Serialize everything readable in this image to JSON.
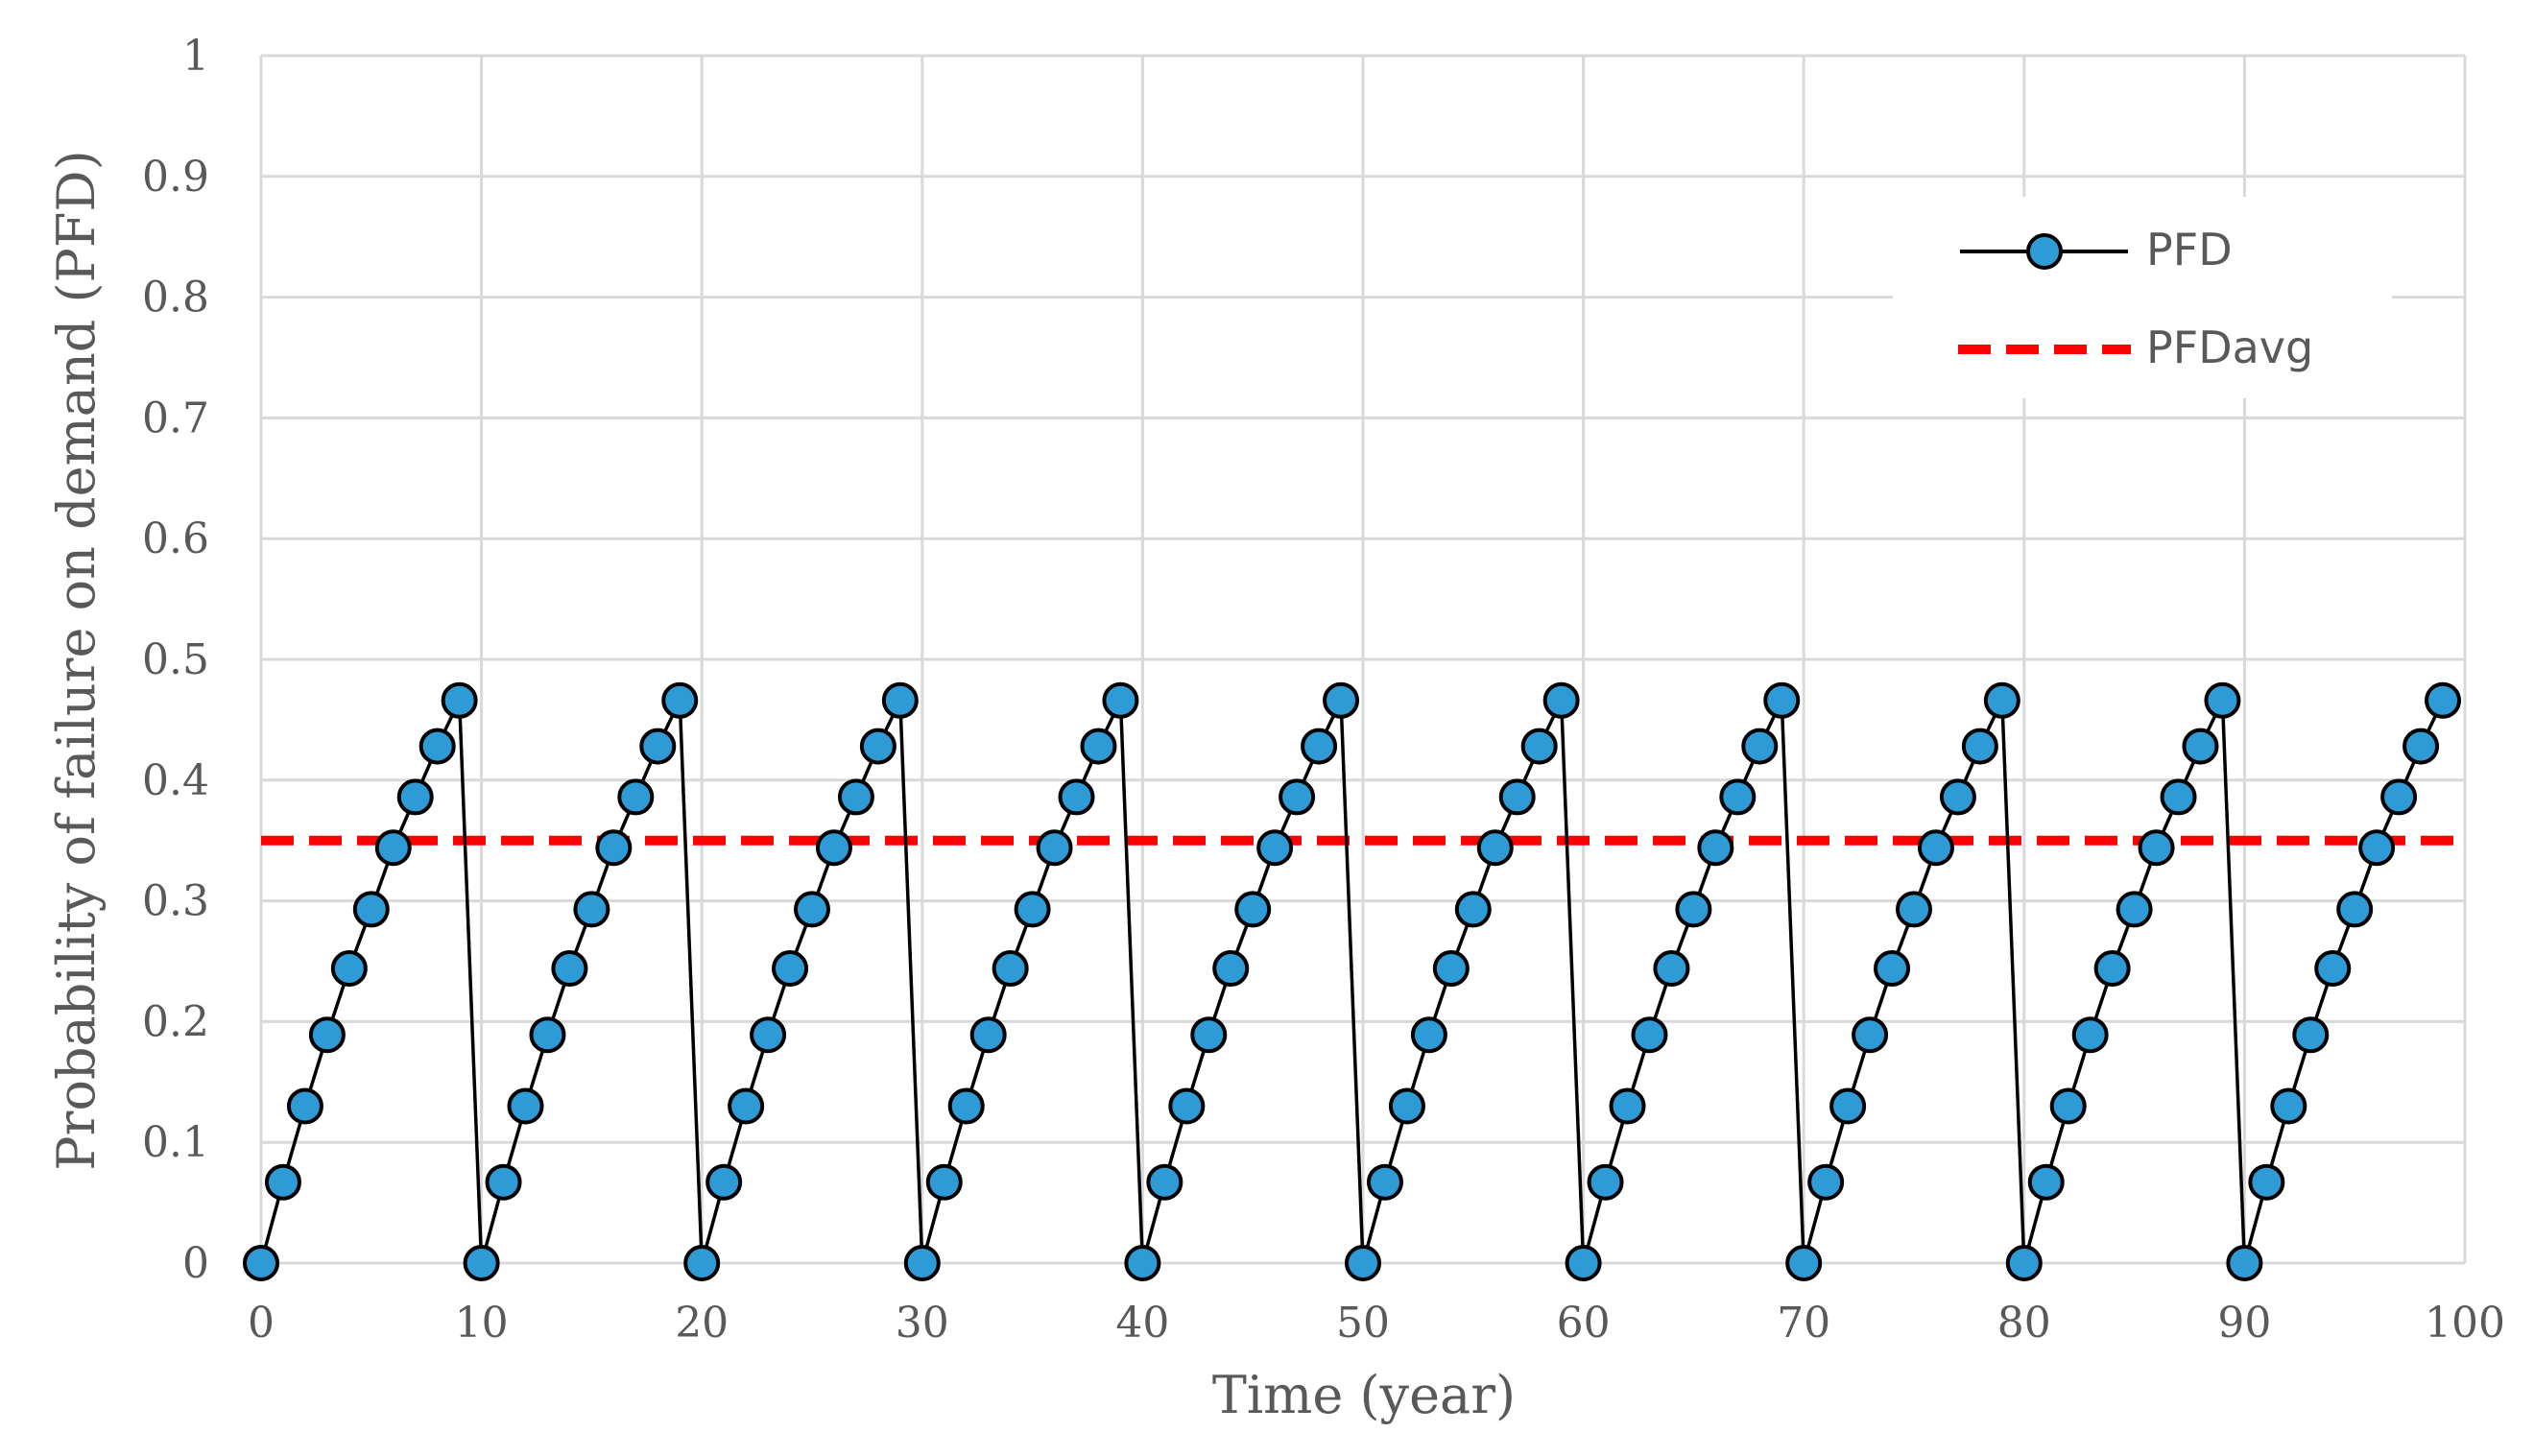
{
  "chart_data": {
    "type": "line",
    "xlabel": "Time (year)",
    "ylabel": "Probability of failure on demand (PFD)",
    "xlim": [
      0,
      100
    ],
    "ylim": [
      0,
      1
    ],
    "x_ticks": [
      0,
      10,
      20,
      30,
      40,
      50,
      60,
      70,
      80,
      90,
      100
    ],
    "y_ticks": [
      0,
      0.1,
      0.2,
      0.3,
      0.4,
      0.5,
      0.6,
      0.7,
      0.8,
      0.9,
      1
    ],
    "y_tick_labels": [
      "0",
      "0.1",
      "0.2",
      "0.3",
      "0.4",
      "0.5",
      "0.6",
      "0.7",
      "0.8",
      "0.9",
      "1"
    ],
    "grid": true,
    "legend_position": "top-right",
    "colors": {
      "pfd_line": "#000000",
      "pfd_marker_fill": "#2e9bd6",
      "pfd_marker_edge": "#000000",
      "pfdavg_line": "#ff0000",
      "grid": "#d9d9d9",
      "text": "#595959"
    },
    "series": [
      {
        "name": "PFD",
        "style": "line-with-circle-markers",
        "cycle_values": [
          0,
          0.067,
          0.13,
          0.189,
          0.244,
          0.293,
          0.344,
          0.386,
          0.428,
          0.466
        ],
        "cycle_length": 10,
        "x": [
          0,
          1,
          2,
          3,
          4,
          5,
          6,
          7,
          8,
          9,
          10,
          11,
          12,
          13,
          14,
          15,
          16,
          17,
          18,
          19,
          20,
          21,
          22,
          23,
          24,
          25,
          26,
          27,
          28,
          29,
          30,
          31,
          32,
          33,
          34,
          35,
          36,
          37,
          38,
          39,
          40,
          41,
          42,
          43,
          44,
          45,
          46,
          47,
          48,
          49,
          50,
          51,
          52,
          53,
          54,
          55,
          56,
          57,
          58,
          59,
          60,
          61,
          62,
          63,
          64,
          65,
          66,
          67,
          68,
          69,
          70,
          71,
          72,
          73,
          74,
          75,
          76,
          77,
          78,
          79,
          80,
          81,
          82,
          83,
          84,
          85,
          86,
          87,
          88,
          89,
          90,
          91,
          92,
          93,
          94,
          95,
          96,
          97,
          98,
          99
        ]
      },
      {
        "name": "PFDavg",
        "style": "dashed-line",
        "x": [
          0,
          100
        ],
        "values": [
          0.35,
          0.35
        ]
      }
    ]
  }
}
